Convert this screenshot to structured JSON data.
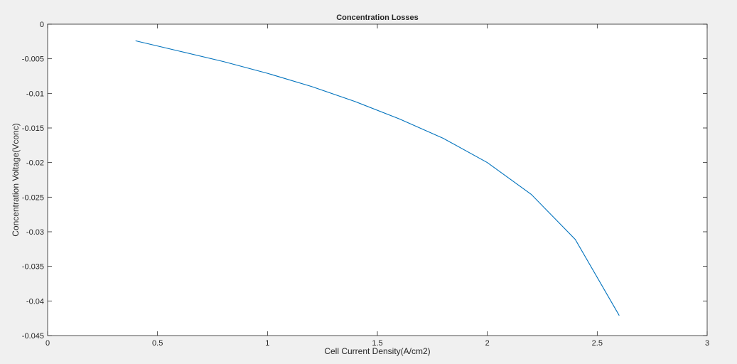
{
  "chart_data": {
    "type": "line",
    "title": "Concentration Losses",
    "xlabel": "Cell Current Density(A/cm2)",
    "ylabel": "Concentration Voltage(Vconc)",
    "xlim": [
      0,
      3
    ],
    "ylim": [
      -0.045,
      0
    ],
    "xticks": [
      0,
      0.5,
      1,
      1.5,
      2,
      2.5,
      3
    ],
    "xtick_labels": [
      "0",
      "0.5",
      "1",
      "1.5",
      "2",
      "2.5",
      "3"
    ],
    "yticks": [
      0,
      -0.005,
      -0.01,
      -0.015,
      -0.02,
      -0.025,
      -0.03,
      -0.035,
      -0.04,
      -0.045
    ],
    "ytick_labels": [
      "0",
      "-0.005",
      "-0.01",
      "-0.015",
      "-0.02",
      "-0.025",
      "-0.03",
      "-0.035",
      "-0.04",
      "-0.045"
    ],
    "grid": false,
    "series": [
      {
        "color": "#0072bd",
        "x": [
          0.4,
          0.6,
          0.8,
          1.0,
          1.2,
          1.4,
          1.6,
          1.8,
          2.0,
          2.2,
          2.4,
          2.6
        ],
        "values": [
          -0.0024,
          -0.0039,
          -0.0054,
          -0.0071,
          -0.009,
          -0.0112,
          -0.0137,
          -0.0165,
          -0.02,
          -0.0246,
          -0.0311,
          -0.0421
        ]
      }
    ]
  }
}
